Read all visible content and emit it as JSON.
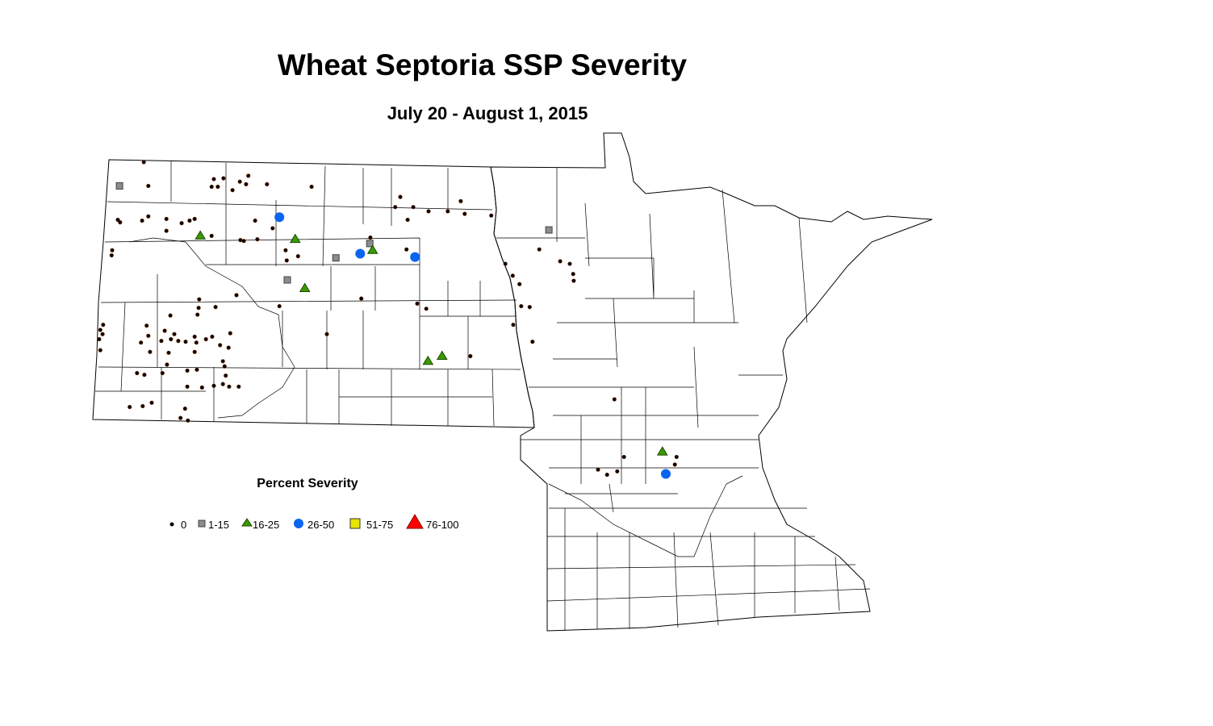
{
  "title": "Wheat Septoria SSP Severity",
  "subtitle": "July 20 - August 1, 2015",
  "legend": {
    "title": "Percent Severity",
    "classes": [
      {
        "label": "0",
        "symbol": "dot",
        "color": "#000000"
      },
      {
        "label": "1-15",
        "symbol": "square",
        "color": "#8c8c8c"
      },
      {
        "label": "16-25",
        "symbol": "triangle",
        "color": "#3a9a00"
      },
      {
        "label": "26-50",
        "symbol": "circle",
        "color": "#0a64f0"
      },
      {
        "label": "51-75",
        "symbol": "square",
        "color": "#e6e600"
      },
      {
        "label": "76-100",
        "symbol": "triangle",
        "color": "#ff0000"
      }
    ]
  },
  "states": [
    "North Dakota",
    "Minnesota"
  ],
  "sites": {
    "0": [
      [
        -103.24,
        48.99
      ],
      [
        -103.16,
        48.71
      ],
      [
        -102.0,
        48.79
      ],
      [
        -101.83,
        48.8
      ],
      [
        -102.04,
        48.7
      ],
      [
        -101.93,
        48.7
      ],
      [
        -101.67,
        48.66
      ],
      [
        -101.54,
        48.76
      ],
      [
        -101.43,
        48.73
      ],
      [
        -101.39,
        48.83
      ],
      [
        -101.06,
        48.73
      ],
      [
        -100.27,
        48.7
      ],
      [
        -103.7,
        48.31
      ],
      [
        -103.66,
        48.28
      ],
      [
        -103.27,
        48.3
      ],
      [
        -103.16,
        48.35
      ],
      [
        -102.84,
        48.32
      ],
      [
        -102.84,
        48.18
      ],
      [
        -102.57,
        48.27
      ],
      [
        -102.43,
        48.3
      ],
      [
        -102.34,
        48.32
      ],
      [
        -102.04,
        48.12
      ],
      [
        -101.53,
        48.07
      ],
      [
        -101.47,
        48.06
      ],
      [
        -101.27,
        48.3
      ],
      [
        -101.23,
        48.08
      ],
      [
        -100.96,
        48.21
      ],
      [
        -100.73,
        47.95
      ],
      [
        -100.71,
        47.83
      ],
      [
        -100.51,
        47.88
      ],
      [
        -103.8,
        47.95
      ],
      [
        -103.81,
        47.89
      ],
      [
        -98.7,
        48.58
      ],
      [
        -98.79,
        48.46
      ],
      [
        -98.47,
        48.46
      ],
      [
        -98.57,
        48.31
      ],
      [
        -98.2,
        48.41
      ],
      [
        -97.86,
        48.41
      ],
      [
        -97.63,
        48.53
      ],
      [
        -97.56,
        48.38
      ],
      [
        -97.09,
        48.36
      ],
      [
        -99.23,
        48.1
      ],
      [
        -98.59,
        47.96
      ],
      [
        -96.24,
        47.96
      ],
      [
        -95.87,
        47.82
      ],
      [
        -95.7,
        47.79
      ],
      [
        -95.64,
        47.67
      ],
      [
        -95.63,
        47.59
      ],
      [
        -96.84,
        47.79
      ],
      [
        -96.71,
        47.65
      ],
      [
        -96.59,
        47.55
      ],
      [
        -96.56,
        47.29
      ],
      [
        -96.41,
        47.28
      ],
      [
        -96.7,
        47.07
      ],
      [
        -96.36,
        46.87
      ],
      [
        -99.39,
        47.38
      ],
      [
        -98.4,
        47.32
      ],
      [
        -98.24,
        47.26
      ],
      [
        -100.0,
        46.96
      ],
      [
        -97.46,
        46.7
      ],
      [
        -100.84,
        47.29
      ],
      [
        -102.26,
        47.37
      ],
      [
        -102.27,
        47.27
      ],
      [
        -102.29,
        47.19
      ],
      [
        -101.97,
        47.28
      ],
      [
        -101.6,
        47.42
      ],
      [
        -102.77,
        47.18
      ],
      [
        -103.96,
        47.07
      ],
      [
        -104.01,
        47.01
      ],
      [
        -103.97,
        46.96
      ],
      [
        -104.03,
        46.9
      ],
      [
        -104.01,
        46.77
      ],
      [
        -103.19,
        47.06
      ],
      [
        -102.87,
        47.0
      ],
      [
        -102.7,
        46.96
      ],
      [
        -103.16,
        46.94
      ],
      [
        -103.29,
        46.86
      ],
      [
        -103.13,
        46.75
      ],
      [
        -102.93,
        46.88
      ],
      [
        -102.76,
        46.9
      ],
      [
        -102.8,
        46.74
      ],
      [
        -102.63,
        46.88
      ],
      [
        -102.5,
        46.87
      ],
      [
        -102.31,
        46.86
      ],
      [
        -102.34,
        46.93
      ],
      [
        -102.14,
        46.9
      ],
      [
        -102.03,
        46.93
      ],
      [
        -101.89,
        46.83
      ],
      [
        -101.74,
        46.8
      ],
      [
        -101.71,
        46.97
      ],
      [
        -102.34,
        46.75
      ],
      [
        -101.84,
        46.64
      ],
      [
        -101.81,
        46.58
      ],
      [
        -101.79,
        46.47
      ],
      [
        -101.84,
        46.37
      ],
      [
        -102.0,
        46.35
      ],
      [
        -101.73,
        46.34
      ],
      [
        -101.56,
        46.34
      ],
      [
        -102.83,
        46.6
      ],
      [
        -102.91,
        46.5
      ],
      [
        -103.36,
        46.5
      ],
      [
        -103.23,
        46.48
      ],
      [
        -102.47,
        46.53
      ],
      [
        -102.3,
        46.54
      ],
      [
        -102.21,
        46.33
      ],
      [
        -102.47,
        46.34
      ],
      [
        -103.49,
        46.1
      ],
      [
        -103.26,
        46.11
      ],
      [
        -103.1,
        46.15
      ],
      [
        -102.51,
        46.08
      ],
      [
        -102.59,
        45.97
      ],
      [
        -102.46,
        45.94
      ],
      [
        -94.91,
        46.19
      ],
      [
        -94.74,
        45.51
      ],
      [
        -95.2,
        45.36
      ],
      [
        -95.04,
        45.3
      ],
      [
        -94.86,
        45.34
      ],
      [
        -93.81,
        45.51
      ],
      [
        -93.84,
        45.42
      ]
    ],
    "1-15": [
      [
        -103.67,
        48.71
      ],
      [
        -99.24,
        48.03
      ],
      [
        -99.84,
        47.86
      ],
      [
        -100.7,
        47.6
      ],
      [
        -96.07,
        48.19
      ]
    ],
    "16-25": [
      [
        -102.24,
        48.12
      ],
      [
        -100.56,
        48.08
      ],
      [
        -99.19,
        47.95
      ],
      [
        -100.39,
        47.5
      ],
      [
        -98.21,
        46.64
      ],
      [
        -97.96,
        46.7
      ],
      [
        -94.06,
        45.57
      ]
    ],
    "26-50": [
      [
        -100.84,
        48.34
      ],
      [
        -99.41,
        47.91
      ],
      [
        -98.44,
        47.87
      ],
      [
        -94.0,
        45.31
      ]
    ],
    "51-75": [],
    "76-100": []
  }
}
